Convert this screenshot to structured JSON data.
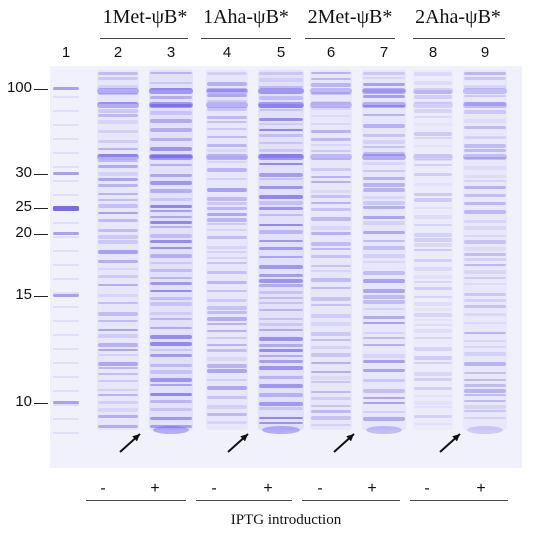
{
  "groups": [
    {
      "label": "1Met-ψB*"
    },
    {
      "label": "1Aha-ψB*"
    },
    {
      "label": "2Met-ψB*"
    },
    {
      "label": "2Aha-ψB*"
    }
  ],
  "lanes": [
    "1",
    "2",
    "3",
    "4",
    "5",
    "6",
    "7",
    "8",
    "9"
  ],
  "markers": [
    "100",
    "30",
    "25",
    "20",
    "15",
    "10"
  ],
  "iptg_signs": [
    "-",
    "+",
    "-",
    "+",
    "-",
    "+",
    "-",
    "+"
  ],
  "caption": "IPTG introduction",
  "colors": {
    "stain": "#6b5cf0",
    "gel_bg": "#f1f1fb"
  }
}
